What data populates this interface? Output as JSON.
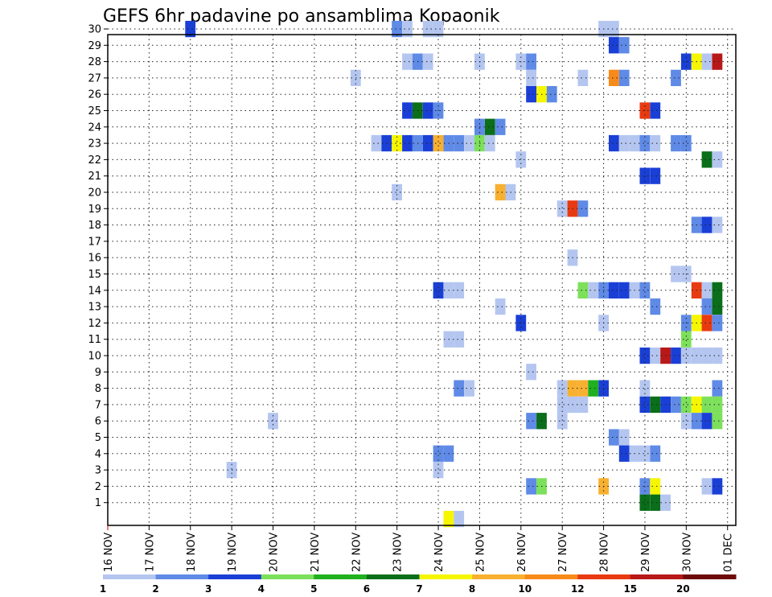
{
  "chart_data": {
    "type": "heatmap",
    "title": "GEFS 6hr padavine po ansamblima Kopaonik",
    "y_categories": [
      1,
      2,
      3,
      4,
      5,
      6,
      7,
      8,
      9,
      10,
      11,
      12,
      13,
      14,
      15,
      16,
      17,
      18,
      19,
      20,
      21,
      22,
      23,
      24,
      25,
      26,
      27,
      28,
      29,
      30
    ],
    "x_range": [
      0,
      15.2
    ],
    "x_tick_labels": [
      "16 NOV",
      "17 NOV",
      "18 NOV",
      "19 NOV",
      "20 NOV",
      "21 NOV",
      "22 NOV",
      "23 NOV",
      "24 NOV",
      "25 NOV",
      "26 NOV",
      "27 NOV",
      "28 NOV",
      "29 NOV",
      "30 NOV",
      "01 DEC"
    ],
    "grid": true,
    "colorbar": {
      "colors": [
        "#b4c6f0",
        "#5f8ae6",
        "#1a3fd6",
        "#7ce05a",
        "#20b020",
        "#0a6e1a",
        "#f6f600",
        "#f8b030",
        "#f88a1a",
        "#e83a10",
        "#b81818",
        "#6e0a0a"
      ],
      "tick_labels": [
        "1",
        "2",
        "3",
        "4",
        "5",
        "6",
        "7",
        "8",
        "10",
        "12",
        "15",
        "20"
      ]
    },
    "cells": [
      [
        30,
        2.0,
        2
      ],
      [
        30,
        7.0,
        1
      ],
      [
        30,
        7.25,
        0
      ],
      [
        30,
        7.75,
        0
      ],
      [
        30,
        8.0,
        0
      ],
      [
        30,
        12.0,
        0
      ],
      [
        30,
        12.25,
        0
      ],
      [
        29,
        12.25,
        2
      ],
      [
        29,
        12.5,
        1
      ],
      [
        28,
        7.25,
        0
      ],
      [
        28,
        7.5,
        1
      ],
      [
        28,
        7.75,
        0
      ],
      [
        28,
        9.0,
        0
      ],
      [
        28,
        10.0,
        0
      ],
      [
        28,
        10.25,
        1
      ],
      [
        28,
        14.0,
        2
      ],
      [
        28,
        14.25,
        6
      ],
      [
        28,
        14.5,
        0
      ],
      [
        28,
        14.75,
        10
      ],
      [
        27,
        6.0,
        0
      ],
      [
        27,
        10.25,
        0
      ],
      [
        27,
        11.5,
        0
      ],
      [
        27,
        12.25,
        8
      ],
      [
        27,
        12.5,
        1
      ],
      [
        27,
        13.75,
        1
      ],
      [
        26,
        10.25,
        2
      ],
      [
        26,
        10.5,
        6
      ],
      [
        26,
        10.75,
        1
      ],
      [
        25,
        7.25,
        2
      ],
      [
        25,
        7.5,
        5
      ],
      [
        25,
        7.75,
        2
      ],
      [
        25,
        8.0,
        1
      ],
      [
        25,
        13.0,
        9
      ],
      [
        25,
        13.25,
        2
      ],
      [
        24,
        9.0,
        1
      ],
      [
        24,
        9.25,
        5
      ],
      [
        24,
        9.5,
        1
      ],
      [
        23,
        6.5,
        0
      ],
      [
        23,
        6.75,
        2
      ],
      [
        23,
        7.0,
        6
      ],
      [
        23,
        7.25,
        2
      ],
      [
        23,
        7.5,
        1
      ],
      [
        23,
        7.75,
        2
      ],
      [
        23,
        8.0,
        7
      ],
      [
        23,
        8.25,
        1
      ],
      [
        23,
        8.5,
        1
      ],
      [
        23,
        8.75,
        0
      ],
      [
        23,
        9.0,
        3
      ],
      [
        23,
        9.25,
        0
      ],
      [
        23,
        12.25,
        2
      ],
      [
        23,
        12.5,
        0
      ],
      [
        23,
        12.75,
        0
      ],
      [
        23,
        13.0,
        1
      ],
      [
        23,
        13.25,
        0
      ],
      [
        23,
        13.75,
        1
      ],
      [
        23,
        14.0,
        1
      ],
      [
        22,
        10.0,
        0
      ],
      [
        22,
        14.5,
        5
      ],
      [
        22,
        14.75,
        0
      ],
      [
        21,
        13.0,
        2
      ],
      [
        21,
        13.25,
        2
      ],
      [
        20,
        7.0,
        0
      ],
      [
        20,
        9.5,
        7
      ],
      [
        20,
        9.75,
        0
      ],
      [
        19,
        11.0,
        0
      ],
      [
        19,
        11.25,
        9
      ],
      [
        19,
        11.5,
        1
      ],
      [
        18,
        14.25,
        1
      ],
      [
        18,
        14.5,
        2
      ],
      [
        18,
        14.75,
        0
      ],
      [
        16,
        11.25,
        0
      ],
      [
        15,
        13.75,
        0
      ],
      [
        15,
        14.0,
        0
      ],
      [
        14,
        8.0,
        2
      ],
      [
        14,
        8.25,
        0
      ],
      [
        14,
        8.5,
        0
      ],
      [
        14,
        11.5,
        3
      ],
      [
        14,
        11.75,
        0
      ],
      [
        14,
        12.0,
        1
      ],
      [
        14,
        12.25,
        2
      ],
      [
        14,
        12.5,
        2
      ],
      [
        14,
        12.75,
        0
      ],
      [
        14,
        13.0,
        1
      ],
      [
        14,
        14.25,
        9
      ],
      [
        14,
        14.5,
        0
      ],
      [
        14,
        14.75,
        5
      ],
      [
        13,
        9.5,
        0
      ],
      [
        13,
        13.25,
        1
      ],
      [
        13,
        14.5,
        1
      ],
      [
        13,
        14.75,
        5
      ],
      [
        12,
        10.0,
        2
      ],
      [
        12,
        12.0,
        0
      ],
      [
        12,
        14.0,
        1
      ],
      [
        12,
        14.25,
        6
      ],
      [
        12,
        14.5,
        9
      ],
      [
        12,
        14.75,
        1
      ],
      [
        11,
        8.25,
        0
      ],
      [
        11,
        8.5,
        0
      ],
      [
        11,
        14.0,
        3
      ],
      [
        10,
        13.0,
        2
      ],
      [
        10,
        13.25,
        0
      ],
      [
        10,
        13.5,
        10
      ],
      [
        10,
        13.75,
        2
      ],
      [
        10,
        14.0,
        0
      ],
      [
        10,
        14.25,
        0
      ],
      [
        10,
        14.5,
        0
      ],
      [
        10,
        14.75,
        0
      ],
      [
        9,
        10.25,
        0
      ],
      [
        8,
        8.5,
        1
      ],
      [
        8,
        8.75,
        0
      ],
      [
        8,
        11.0,
        0
      ],
      [
        8,
        11.25,
        7
      ],
      [
        8,
        11.5,
        7
      ],
      [
        8,
        11.75,
        4
      ],
      [
        8,
        12.0,
        2
      ],
      [
        8,
        13.0,
        0
      ],
      [
        8,
        14.75,
        1
      ],
      [
        7,
        11.0,
        0
      ],
      [
        7,
        11.25,
        0
      ],
      [
        7,
        11.5,
        0
      ],
      [
        7,
        13.0,
        2
      ],
      [
        7,
        13.25,
        5
      ],
      [
        7,
        13.5,
        2
      ],
      [
        7,
        13.75,
        1
      ],
      [
        7,
        14.0,
        3
      ],
      [
        7,
        14.25,
        6
      ],
      [
        7,
        14.5,
        3
      ],
      [
        7,
        14.75,
        3
      ],
      [
        6,
        4.0,
        0
      ],
      [
        6,
        10.25,
        1
      ],
      [
        6,
        10.5,
        5
      ],
      [
        6,
        11.0,
        0
      ],
      [
        6,
        14.0,
        0
      ],
      [
        6,
        14.25,
        1
      ],
      [
        6,
        14.5,
        2
      ],
      [
        6,
        14.75,
        3
      ],
      [
        5,
        12.25,
        1
      ],
      [
        5,
        12.5,
        0
      ],
      [
        4,
        8.0,
        1
      ],
      [
        4,
        8.25,
        1
      ],
      [
        4,
        12.5,
        2
      ],
      [
        4,
        12.75,
        0
      ],
      [
        4,
        13.0,
        0
      ],
      [
        4,
        13.25,
        1
      ],
      [
        3,
        3.0,
        0
      ],
      [
        3,
        8.0,
        0
      ],
      [
        2,
        10.25,
        1
      ],
      [
        2,
        10.5,
        3
      ],
      [
        2,
        12.0,
        7
      ],
      [
        2,
        13.0,
        1
      ],
      [
        2,
        13.25,
        6
      ],
      [
        2,
        14.5,
        0
      ],
      [
        2,
        14.75,
        2
      ],
      [
        1,
        13.0,
        5
      ],
      [
        1,
        13.25,
        5
      ],
      [
        1,
        13.5,
        0
      ],
      [
        0,
        8.25,
        6
      ],
      [
        0,
        8.5,
        0
      ]
    ]
  }
}
